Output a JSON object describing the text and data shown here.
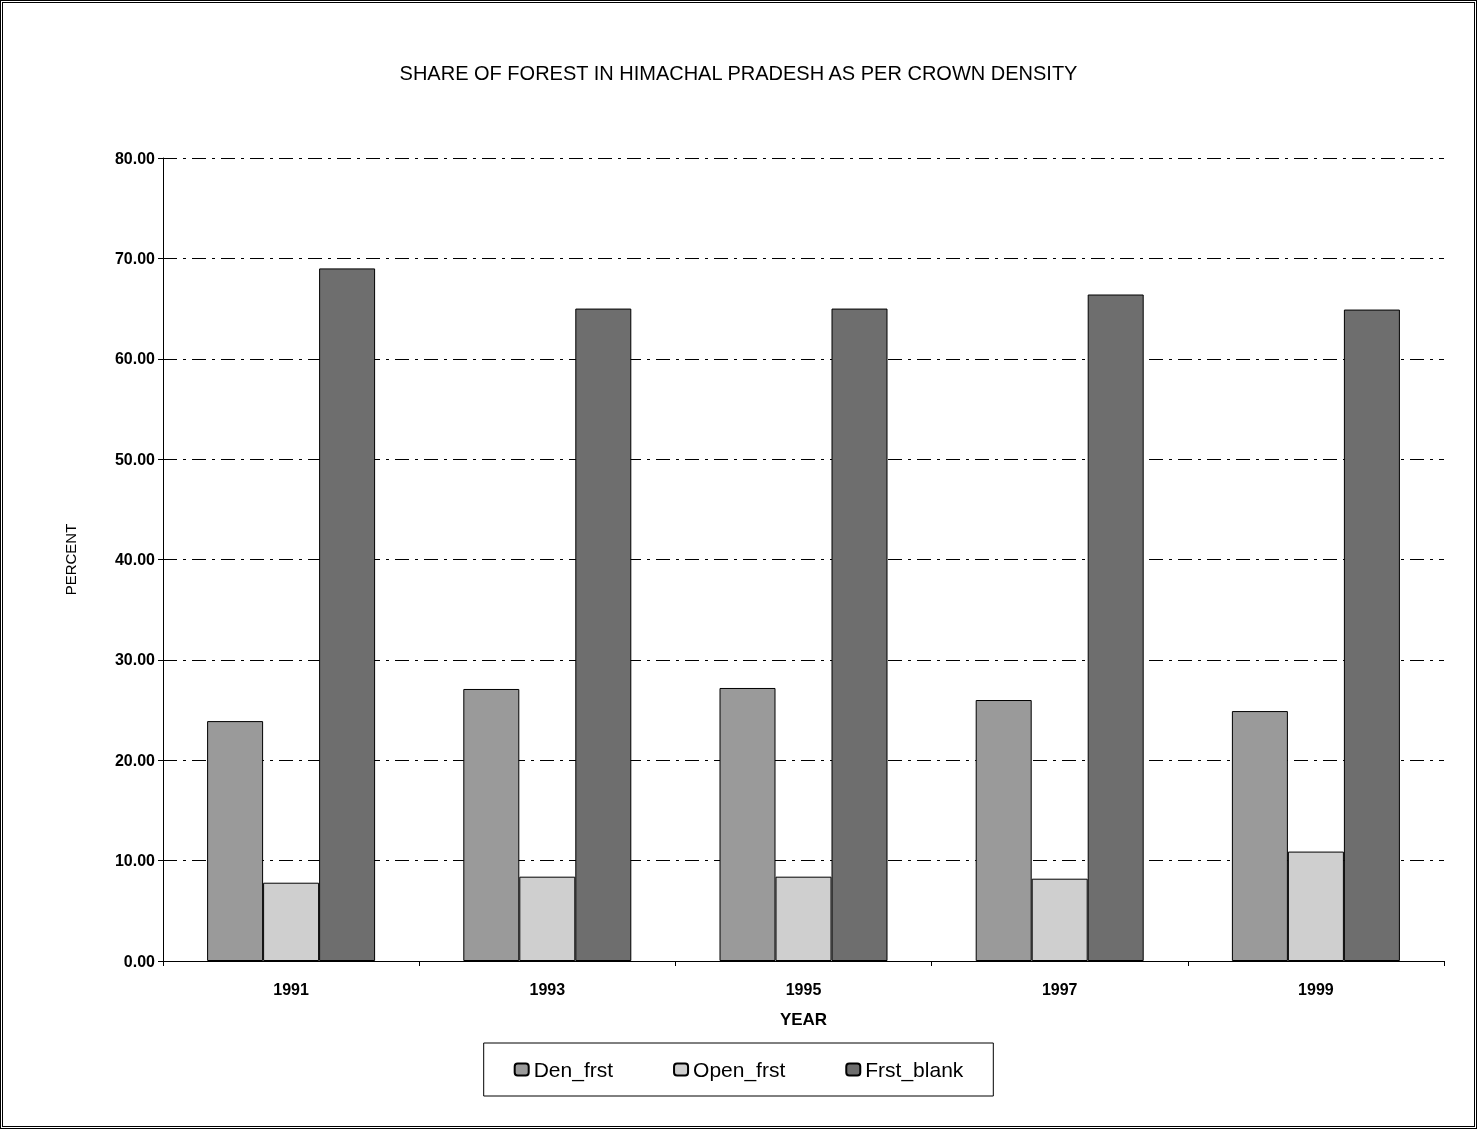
{
  "chart_data": {
    "type": "bar",
    "title": "SHARE OF FOREST IN HIMACHAL PRADESH AS PER CROWN DENSITY",
    "xlabel": "YEAR",
    "ylabel": "PERCENT",
    "categories": [
      "1991",
      "1993",
      "1995",
      "1997",
      "1999"
    ],
    "series": [
      {
        "name": "Den_frst",
        "color": "#9a9a9a",
        "values": [
          23.9,
          27.1,
          27.2,
          26.0,
          24.9
        ]
      },
      {
        "name": "Open_frst",
        "color": "#cfcfcf",
        "values": [
          7.8,
          8.4,
          8.4,
          8.2,
          10.9
        ]
      },
      {
        "name": "Frst_blank",
        "color": "#6e6e6e",
        "values": [
          69.0,
          65.0,
          65.0,
          66.4,
          64.9
        ]
      }
    ],
    "ylim": [
      0,
      80
    ],
    "yticks": [
      {
        "value": 0,
        "label": "0.00"
      },
      {
        "value": 10,
        "label": "10.00"
      },
      {
        "value": 20,
        "label": "20.00"
      },
      {
        "value": 30,
        "label": "30.00"
      },
      {
        "value": 40,
        "label": "40.00"
      },
      {
        "value": 50,
        "label": "50.00"
      },
      {
        "value": 60,
        "label": "60.00"
      },
      {
        "value": 70,
        "label": "70.00"
      },
      {
        "value": 80,
        "label": "80.00"
      }
    ],
    "grid": "y",
    "legend": "bottom"
  }
}
